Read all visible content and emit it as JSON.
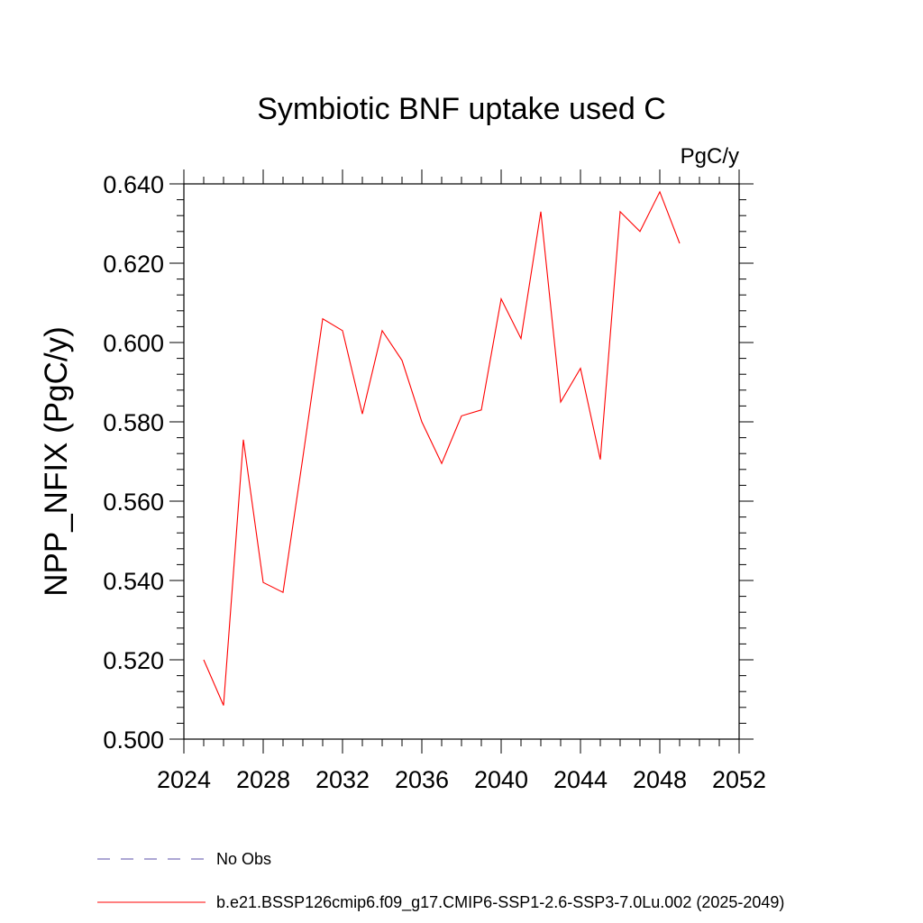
{
  "chart_data": {
    "type": "line",
    "title": "Symbiotic BNF uptake used C",
    "units_label": "PgC/y",
    "ylabel": "NPP_NFIX  (PgC/y)",
    "xlabel": "",
    "xlim": [
      2024,
      2052
    ],
    "ylim": [
      0.5,
      0.64
    ],
    "x_major_ticks": [
      2024,
      2028,
      2032,
      2036,
      2040,
      2044,
      2048,
      2052
    ],
    "x_tick_labels": [
      "2024",
      "2028",
      "2032",
      "2036",
      "2040",
      "2044",
      "2048",
      "2052"
    ],
    "x_minor_step": 1,
    "y_major_ticks": [
      0.5,
      0.52,
      0.54,
      0.56,
      0.58,
      0.6,
      0.62,
      0.64
    ],
    "y_tick_labels": [
      "0.500",
      "0.520",
      "0.540",
      "0.560",
      "0.580",
      "0.600",
      "0.620",
      "0.640"
    ],
    "y_minor_step": 0.004,
    "grid": false,
    "series": [
      {
        "name": "b.e21.BSSP126cmip6.f09_g17.CMIP6-SSP1-2.6-SSP3-7.0Lu.002 (2025-2049)",
        "color": "#ff0000",
        "x": [
          2025,
          2026,
          2027,
          2028,
          2029,
          2030,
          2031,
          2032,
          2033,
          2034,
          2035,
          2036,
          2037,
          2038,
          2039,
          2040,
          2041,
          2042,
          2043,
          2044,
          2045,
          2046,
          2047,
          2048,
          2049
        ],
        "values": [
          0.52,
          0.5085,
          0.5755,
          0.5395,
          0.537,
          0.571,
          0.606,
          0.603,
          0.582,
          0.603,
          0.5955,
          0.58,
          0.5695,
          0.5815,
          0.583,
          0.611,
          0.601,
          0.633,
          0.585,
          0.5935,
          0.5705,
          0.633,
          0.628,
          0.638,
          0.625
        ]
      }
    ],
    "legend": {
      "position": "bottom",
      "entries": [
        {
          "label": "No Obs",
          "color": "#5b4fa8",
          "style": "dashed"
        },
        {
          "label": "b.e21.BSSP126cmip6.f09_g17.CMIP6-SSP1-2.6-SSP3-7.0Lu.002 (2025-2049)",
          "color": "#ff0000",
          "style": "solid"
        }
      ]
    }
  }
}
